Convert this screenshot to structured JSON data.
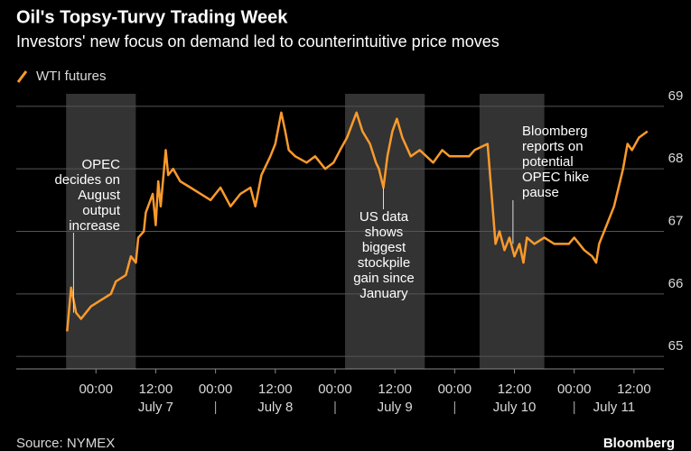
{
  "chart_data": {
    "type": "line",
    "title": "Oil's Topsy-Turvy Trading Week",
    "subtitle": "Investors' new focus on demand led to counterintuitive price moves",
    "source": "Source: NYMEX",
    "brand": "Bloomberg",
    "series": [
      {
        "name": "WTI futures",
        "color": "#fb9a2b",
        "x": [
          -5.8,
          -5,
          -4,
          -3,
          -1,
          1,
          3,
          4,
          6,
          7,
          8,
          8.5,
          9.6,
          10,
          11.4,
          12,
          12.5,
          13,
          14,
          14.5,
          15.5,
          16.9,
          19,
          21,
          23,
          25,
          27,
          29,
          31,
          32,
          33.2,
          35,
          36,
          37.2,
          38,
          38.7,
          40,
          42.3,
          44,
          46,
          47.7,
          49,
          50.4,
          52.3,
          53.5,
          55,
          56.2,
          56.8,
          57.7,
          58.5,
          59.5,
          60.4,
          61.5,
          63.2,
          65,
          67.7,
          69.5,
          71,
          74.9,
          76,
          78.6,
          79.4,
          80.2,
          81,
          82,
          83,
          84,
          85,
          85.8,
          86.5,
          88,
          90,
          92,
          94.9,
          96,
          98,
          99.6,
          100.4,
          101,
          102.5,
          104,
          105.8,
          106.7,
          107.6,
          109,
          110.7
        ],
        "values": [
          65.4,
          66.1,
          65.7,
          65.6,
          65.8,
          65.9,
          66.0,
          66.2,
          66.3,
          66.6,
          66.5,
          66.9,
          67.0,
          67.3,
          67.6,
          67.1,
          67.8,
          67.4,
          68.3,
          67.9,
          68.0,
          67.8,
          67.7,
          67.6,
          67.5,
          67.7,
          67.4,
          67.6,
          67.7,
          67.4,
          67.9,
          68.2,
          68.4,
          68.9,
          68.6,
          68.3,
          68.2,
          68.1,
          68.2,
          68.0,
          68.1,
          68.3,
          68.5,
          68.9,
          68.6,
          68.4,
          68.1,
          68.0,
          67.7,
          68.2,
          68.6,
          68.8,
          68.5,
          68.2,
          68.3,
          68.1,
          68.3,
          68.2,
          68.2,
          68.3,
          68.4,
          67.6,
          66.8,
          67.0,
          66.7,
          66.9,
          66.6,
          66.8,
          66.5,
          66.9,
          66.8,
          66.9,
          66.8,
          66.8,
          66.9,
          66.7,
          66.6,
          66.5,
          66.8,
          67.1,
          67.4,
          68.0,
          68.4,
          68.3,
          68.5,
          68.6
        ]
      }
    ],
    "xlim": [
      -16,
      114
    ],
    "xticks": [
      {
        "value": 0,
        "label": "00:00"
      },
      {
        "value": 12,
        "label": "12:00"
      },
      {
        "value": 24,
        "label": "00:00"
      },
      {
        "value": 36,
        "label": "12:00"
      },
      {
        "value": 48,
        "label": "00:00"
      },
      {
        "value": 60,
        "label": "12:00"
      },
      {
        "value": 72,
        "label": "00:00"
      },
      {
        "value": 84,
        "label": "12:00"
      },
      {
        "value": 96,
        "label": "00:00"
      },
      {
        "value": 108,
        "label": "12:00"
      }
    ],
    "day_labels": [
      {
        "value": 12,
        "label": "July 7"
      },
      {
        "value": 36,
        "label": "July 8"
      },
      {
        "value": 60,
        "label": "July 9"
      },
      {
        "value": 84,
        "label": "July 10"
      },
      {
        "value": 104,
        "label": "July 11"
      }
    ],
    "ylim": [
      64.8,
      69.2
    ],
    "yticks": [
      65,
      66,
      67,
      68,
      69
    ],
    "grid": true,
    "shaded_ranges": [
      [
        -6,
        8
      ],
      [
        50,
        66
      ],
      [
        77,
        90
      ]
    ],
    "annotations": [
      {
        "lines": [
          "OPEC",
          "decides on",
          "August",
          "output",
          "increase"
        ],
        "x": -4.5,
        "y": 65.7
      },
      {
        "lines": [
          "US data",
          "shows",
          "biggest",
          "stockpile",
          "gain since",
          "January"
        ],
        "x": 57.7,
        "y": 67.7
      },
      {
        "lines": [
          "Bloomberg",
          "reports on",
          "potential",
          "OPEC hike",
          "pause"
        ],
        "x": 83.7,
        "y": 66.8
      }
    ]
  }
}
